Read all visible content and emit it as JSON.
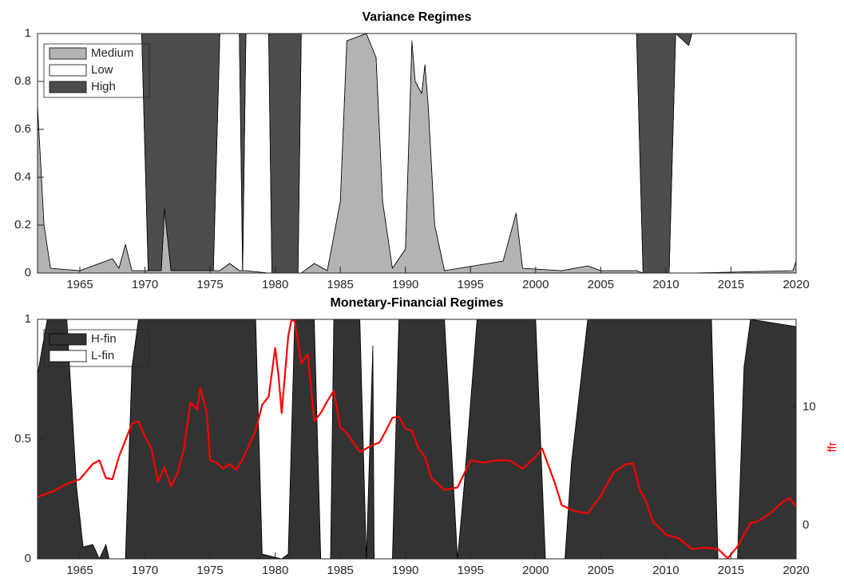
{
  "chart_data": [
    {
      "type": "area",
      "title": "Variance Regimes",
      "x": [
        1961.75,
        1962.25,
        1962.75,
        1965,
        1967,
        1967.5,
        1968,
        1968.5,
        1969,
        1969.75,
        1970.25,
        1971.25,
        1971.5,
        1972,
        1975.25,
        1975.75,
        1976.5,
        1977.25,
        1977.5,
        1977.75,
        1979.5,
        1979.75,
        1981.75,
        1982,
        1983,
        1984,
        1985,
        1985.5,
        1987,
        1987.75,
        1988.25,
        1989,
        1990,
        1990.5,
        1990.75,
        1991.25,
        1991.5,
        1991.75,
        1992.25,
        1993,
        1997.5,
        1998.5,
        1999,
        2002,
        2003,
        2004,
        2005,
        2007.75,
        2008.25,
        2010.25,
        2010.75,
        2011.75,
        2012,
        2019.75,
        2020
      ],
      "series": [
        {
          "name": "Medium",
          "color": "#b3b3b3",
          "values": [
            0.7,
            0.2,
            0.02,
            0.01,
            0.05,
            0.06,
            0.02,
            0.12,
            0.01,
            0.01,
            0.01,
            0.01,
            0.27,
            0.01,
            0.01,
            0.01,
            0.04,
            0.01,
            0.01,
            0.01,
            0,
            0,
            0,
            0,
            0.04,
            0.01,
            0.3,
            0.97,
            1,
            0.9,
            0.3,
            0.02,
            0.1,
            0.97,
            0.8,
            0.75,
            0.87,
            0.7,
            0.2,
            0.01,
            0.05,
            0.25,
            0.02,
            0.01,
            0.02,
            0.03,
            0.01,
            0.01,
            0,
            0,
            0,
            0,
            0,
            0.01,
            0.05
          ]
        },
        {
          "name": "Low",
          "color": "#ffffff",
          "values": [
            0.3,
            0.8,
            0.98,
            0.99,
            0.95,
            0.94,
            0.98,
            0.88,
            0.99,
            0.99,
            0,
            0,
            0,
            0,
            0,
            0.99,
            0.96,
            0.99,
            0,
            0.99,
            1,
            0,
            0,
            1,
            0.96,
            0.99,
            0.7,
            0.03,
            0,
            0.1,
            0.7,
            0.98,
            0.9,
            0.03,
            0.2,
            0.25,
            0.13,
            0.3,
            0.8,
            0.99,
            0.95,
            0.75,
            0.98,
            0.99,
            0.98,
            0.97,
            0.99,
            0.99,
            0,
            0,
            1,
            0.95,
            1,
            0.99,
            0.95
          ]
        },
        {
          "name": "High",
          "color": "#4d4d4d",
          "values": [
            0,
            0,
            0,
            0,
            0,
            0,
            0,
            0,
            0,
            0,
            0.99,
            0.99,
            0.73,
            0.99,
            0.99,
            0,
            0,
            0,
            0.99,
            0,
            0,
            1,
            1,
            0,
            0,
            0,
            0,
            0,
            0,
            0,
            0,
            0,
            0,
            0,
            0,
            0,
            0,
            0,
            0,
            0,
            0,
            0,
            0,
            0,
            0,
            0,
            0,
            0,
            1,
            1,
            0,
            0.05,
            0,
            0,
            0
          ]
        }
      ],
      "xlim": [
        1961.75,
        2020
      ],
      "xticks": [
        1965,
        1970,
        1975,
        1980,
        1985,
        1990,
        1995,
        2000,
        2005,
        2010,
        2015,
        2020
      ],
      "ylim": [
        0,
        1
      ],
      "yticks": [
        0,
        0.2,
        0.4,
        0.6,
        0.8,
        1
      ],
      "legend": "upper left"
    },
    {
      "type": "area",
      "title": "Monetary-Financial Regimes",
      "x": [
        1961.75,
        1962.5,
        1964,
        1964.75,
        1965.25,
        1966,
        1966.5,
        1967,
        1967.25,
        1968.5,
        1969,
        1969.5,
        1978.5,
        1979,
        1980.5,
        1981,
        1981.5,
        1983,
        1983.5,
        1984.25,
        1984.5,
        1986.5,
        1987,
        1987.5,
        1987.6,
        1989,
        1989.5,
        1993,
        1994,
        1994.5,
        1995.5,
        2000,
        2000.75,
        2002.25,
        2002.75,
        2004,
        2013.5,
        2014,
        2015.5,
        2016,
        2016.5,
        2020
      ],
      "series": [
        {
          "name": "H-fin",
          "color": "#333333",
          "values": [
            0.77,
            1,
            1,
            0.3,
            0.05,
            0.06,
            0,
            0.06,
            0,
            0,
            0.8,
            1,
            1,
            0.02,
            0,
            0.02,
            1,
            1,
            0,
            0,
            1,
            1,
            0,
            0.89,
            0,
            0,
            1,
            1,
            0,
            0.3,
            1,
            1,
            0,
            0,
            0.4,
            1,
            1,
            0,
            0,
            0.8,
            1,
            0.97
          ]
        },
        {
          "name": "L-fin",
          "color": "#ffffff",
          "values": [
            0.23,
            0,
            0,
            0.7,
            0.95,
            0.94,
            1,
            0.94,
            1,
            1,
            0.2,
            0,
            0,
            0.98,
            1,
            0.98,
            0,
            0,
            1,
            1,
            0,
            0,
            1,
            0.11,
            1,
            1,
            0,
            0,
            1,
            0.7,
            0,
            0,
            1,
            1,
            0.6,
            0,
            0,
            1,
            1,
            0.2,
            0,
            0.03
          ]
        },
        {
          "name": "ffr",
          "color": "#ff0000",
          "axis": "y2",
          "x": [
            1961.75,
            1963,
            1964,
            1965,
            1966,
            1966.5,
            1967,
            1967.5,
            1968,
            1969,
            1969.5,
            1970,
            1970.5,
            1971,
            1971.5,
            1972,
            1972.5,
            1973,
            1973.5,
            1974,
            1974.25,
            1974.75,
            1975,
            1975.5,
            1976,
            1976.5,
            1977,
            1977.5,
            1978,
            1978.5,
            1979,
            1979.5,
            1980,
            1980.25,
            1980.5,
            1981,
            1981.25,
            1981.5,
            1982,
            1982.5,
            1983,
            1983.5,
            1984,
            1984.5,
            1985,
            1985.5,
            1986,
            1986.5,
            1987,
            1987.5,
            1988,
            1988.5,
            1989,
            1989.5,
            1990,
            1990.5,
            1991,
            1991.5,
            1992,
            1993,
            1994,
            1995,
            1996,
            1997,
            1998,
            1999,
            2000,
            2000.5,
            2001,
            2001.5,
            2002,
            2003,
            2004,
            2005,
            2006,
            2007,
            2007.5,
            2008,
            2008.5,
            2009,
            2009.5,
            2010,
            2011,
            2012,
            2013,
            2014,
            2014.75,
            2015.5,
            2016.5,
            2017,
            2018,
            2019,
            2019.5,
            2020
          ],
          "values": [
            2.4,
            2.9,
            3.5,
            3.9,
            5.2,
            5.5,
            4.0,
            3.9,
            5.8,
            8.6,
            8.8,
            7.5,
            6.5,
            3.7,
            4.9,
            3.3,
            4.4,
            6.5,
            10.4,
            9.8,
            11.6,
            9.5,
            5.5,
            5.3,
            4.8,
            5.2,
            4.7,
            5.6,
            6.8,
            8.0,
            10.2,
            10.9,
            15.0,
            12.7,
            9.5,
            16.0,
            17.4,
            17.3,
            13.7,
            14.5,
            8.8,
            9.5,
            10.5,
            11.4,
            8.3,
            7.8,
            7.0,
            6.2,
            6.5,
            6.8,
            7.0,
            8.0,
            9.1,
            9.2,
            8.2,
            8.0,
            6.5,
            5.8,
            4.0,
            3.0,
            3.2,
            5.5,
            5.3,
            5.5,
            5.5,
            4.8,
            5.8,
            6.5,
            5.0,
            3.5,
            1.7,
            1.2,
            1.0,
            2.5,
            4.5,
            5.2,
            5.2,
            3.0,
            2.0,
            0.3,
            -0.2,
            -0.8,
            -1.1,
            -2.0,
            -1.9,
            -2.0,
            -2.8,
            -1.8,
            0.2,
            0.3,
            1.0,
            2.0,
            2.3,
            1.6
          ]
        }
      ],
      "xlim": [
        1961.75,
        2020
      ],
      "xticks": [
        1965,
        1970,
        1975,
        1980,
        1985,
        1990,
        1995,
        2000,
        2005,
        2010,
        2015,
        2020
      ],
      "ylim": [
        0,
        1
      ],
      "yticks": [
        0,
        0.5,
        1
      ],
      "y2label": "ffr",
      "y2lim": [
        -2.84,
        17.43
      ],
      "y2ticks": [
        0,
        10
      ],
      "legend": "upper left"
    }
  ]
}
